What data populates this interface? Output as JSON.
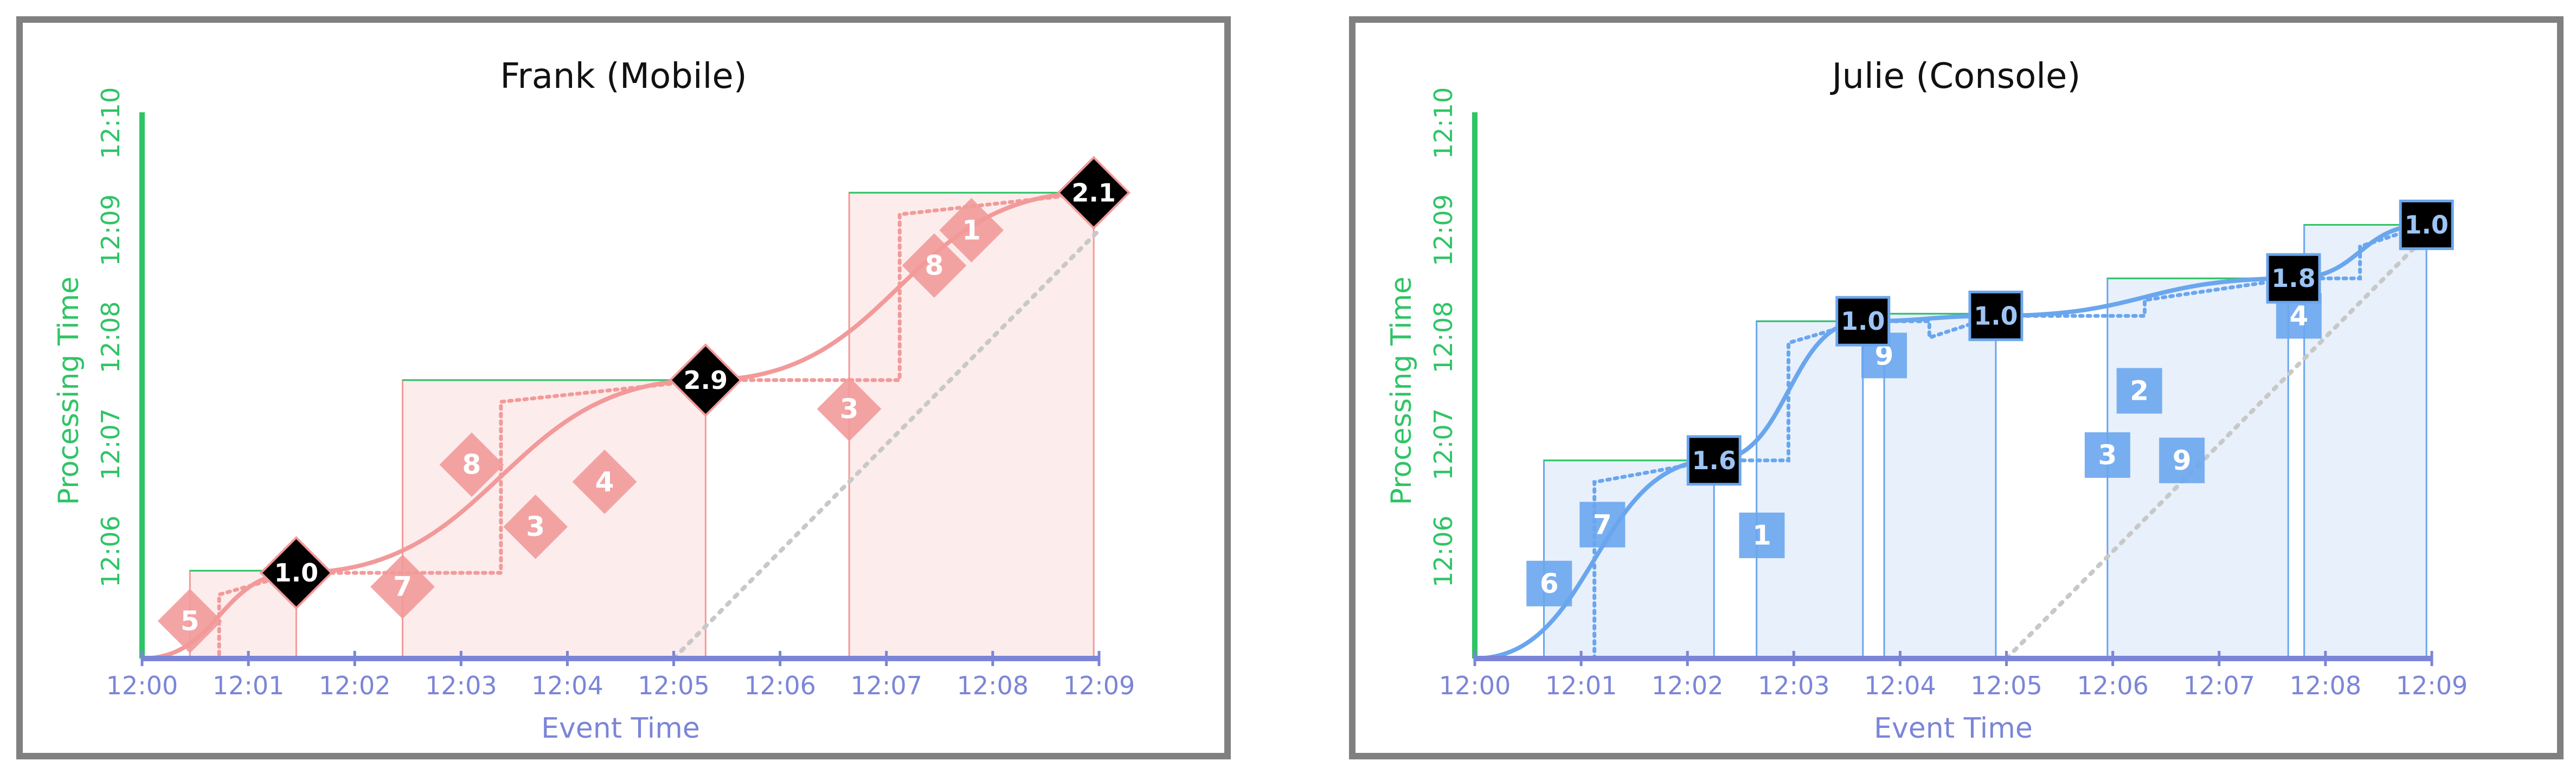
{
  "colors": {
    "panel_border": "#808080",
    "x_axis": "#7b85d8",
    "y_axis": "#2fc466",
    "left_accent": "#f29a9a",
    "left_fill": "#fdecec",
    "right_accent": "#6aa6ee",
    "right_fill": "#e8f0fb",
    "ideal_line": "#c8c8c8",
    "watermark_box": "#000000"
  },
  "panels": [
    {
      "title": "Frank (Mobile)",
      "theme": "left",
      "marker_shape": "diamond",
      "x_axis_label": "Event Time",
      "y_axis_label": "Processing Time",
      "x_ticks": [
        "12:00",
        "12:01",
        "12:02",
        "12:03",
        "12:04",
        "12:05",
        "12:06",
        "12:07",
        "12:08",
        "12:09"
      ],
      "y_ticks": [
        "12:06",
        "12:07",
        "12:08",
        "12:09",
        "12:10"
      ],
      "events": [
        {
          "label": "5",
          "event_min": 0.45,
          "proc_min": 5.35
        },
        {
          "label": "7",
          "event_min": 2.45,
          "proc_min": 5.67
        },
        {
          "label": "8",
          "event_min": 3.1,
          "proc_min": 6.81
        },
        {
          "label": "3",
          "event_min": 3.7,
          "proc_min": 6.23
        },
        {
          "label": "4",
          "event_min": 4.35,
          "proc_min": 6.65
        },
        {
          "label": "3",
          "event_min": 6.65,
          "proc_min": 7.33
        },
        {
          "label": "8",
          "event_min": 7.45,
          "proc_min": 8.67
        },
        {
          "label": "1",
          "event_min": 7.8,
          "proc_min": 9.0
        }
      ],
      "watermarks": [
        {
          "label": "1.0",
          "event_min": 1.45,
          "proc_min": 5.8
        },
        {
          "label": "2.9",
          "event_min": 5.3,
          "proc_min": 7.6
        },
        {
          "label": "2.1",
          "event_min": 8.95,
          "proc_min": 9.35
        }
      ],
      "windows": [
        {
          "start_min": 0.45,
          "end_min": 1.45,
          "top_proc_min": 5.82
        },
        {
          "start_min": 2.45,
          "end_min": 5.3,
          "top_proc_min": 7.6
        },
        {
          "start_min": 6.65,
          "end_min": 8.95,
          "top_proc_min": 9.35
        }
      ]
    },
    {
      "title": "Julie (Console)",
      "theme": "right",
      "marker_shape": "square",
      "x_axis_label": "Event Time",
      "y_axis_label": "Processing Time",
      "x_ticks": [
        "12:00",
        "12:01",
        "12:02",
        "12:03",
        "12:04",
        "12:05",
        "12:06",
        "12:07",
        "12:08",
        "12:09"
      ],
      "y_ticks": [
        "12:06",
        "12:07",
        "12:08",
        "12:09",
        "12:10"
      ],
      "events": [
        {
          "label": "6",
          "event_min": 0.7,
          "proc_min": 5.7
        },
        {
          "label": "7",
          "event_min": 1.2,
          "proc_min": 6.25
        },
        {
          "label": "1",
          "event_min": 2.7,
          "proc_min": 6.15
        },
        {
          "label": "9",
          "event_min": 3.85,
          "proc_min": 7.83
        },
        {
          "label": "3",
          "event_min": 5.95,
          "proc_min": 6.9
        },
        {
          "label": "2",
          "event_min": 6.25,
          "proc_min": 7.5
        },
        {
          "label": "9",
          "event_min": 6.65,
          "proc_min": 6.85
        },
        {
          "label": "4",
          "event_min": 7.75,
          "proc_min": 8.2
        }
      ],
      "watermarks": [
        {
          "label": "1.6",
          "event_min": 2.25,
          "proc_min": 6.85
        },
        {
          "label": "1.0",
          "event_min": 3.65,
          "proc_min": 8.15
        },
        {
          "label": "1.0",
          "event_min": 4.9,
          "proc_min": 8.2
        },
        {
          "label": "1.8",
          "event_min": 7.7,
          "proc_min": 8.55
        },
        {
          "label": "1.0",
          "event_min": 8.95,
          "proc_min": 9.05
        }
      ],
      "windows": [
        {
          "start_min": 0.65,
          "end_min": 2.25,
          "top_proc_min": 6.85
        },
        {
          "start_min": 2.65,
          "end_min": 3.65,
          "top_proc_min": 8.15
        },
        {
          "start_min": 3.85,
          "end_min": 4.9,
          "top_proc_min": 8.22
        },
        {
          "start_min": 5.95,
          "end_min": 7.65,
          "top_proc_min": 8.55
        },
        {
          "start_min": 7.8,
          "end_min": 8.95,
          "top_proc_min": 9.05
        }
      ]
    }
  ]
}
